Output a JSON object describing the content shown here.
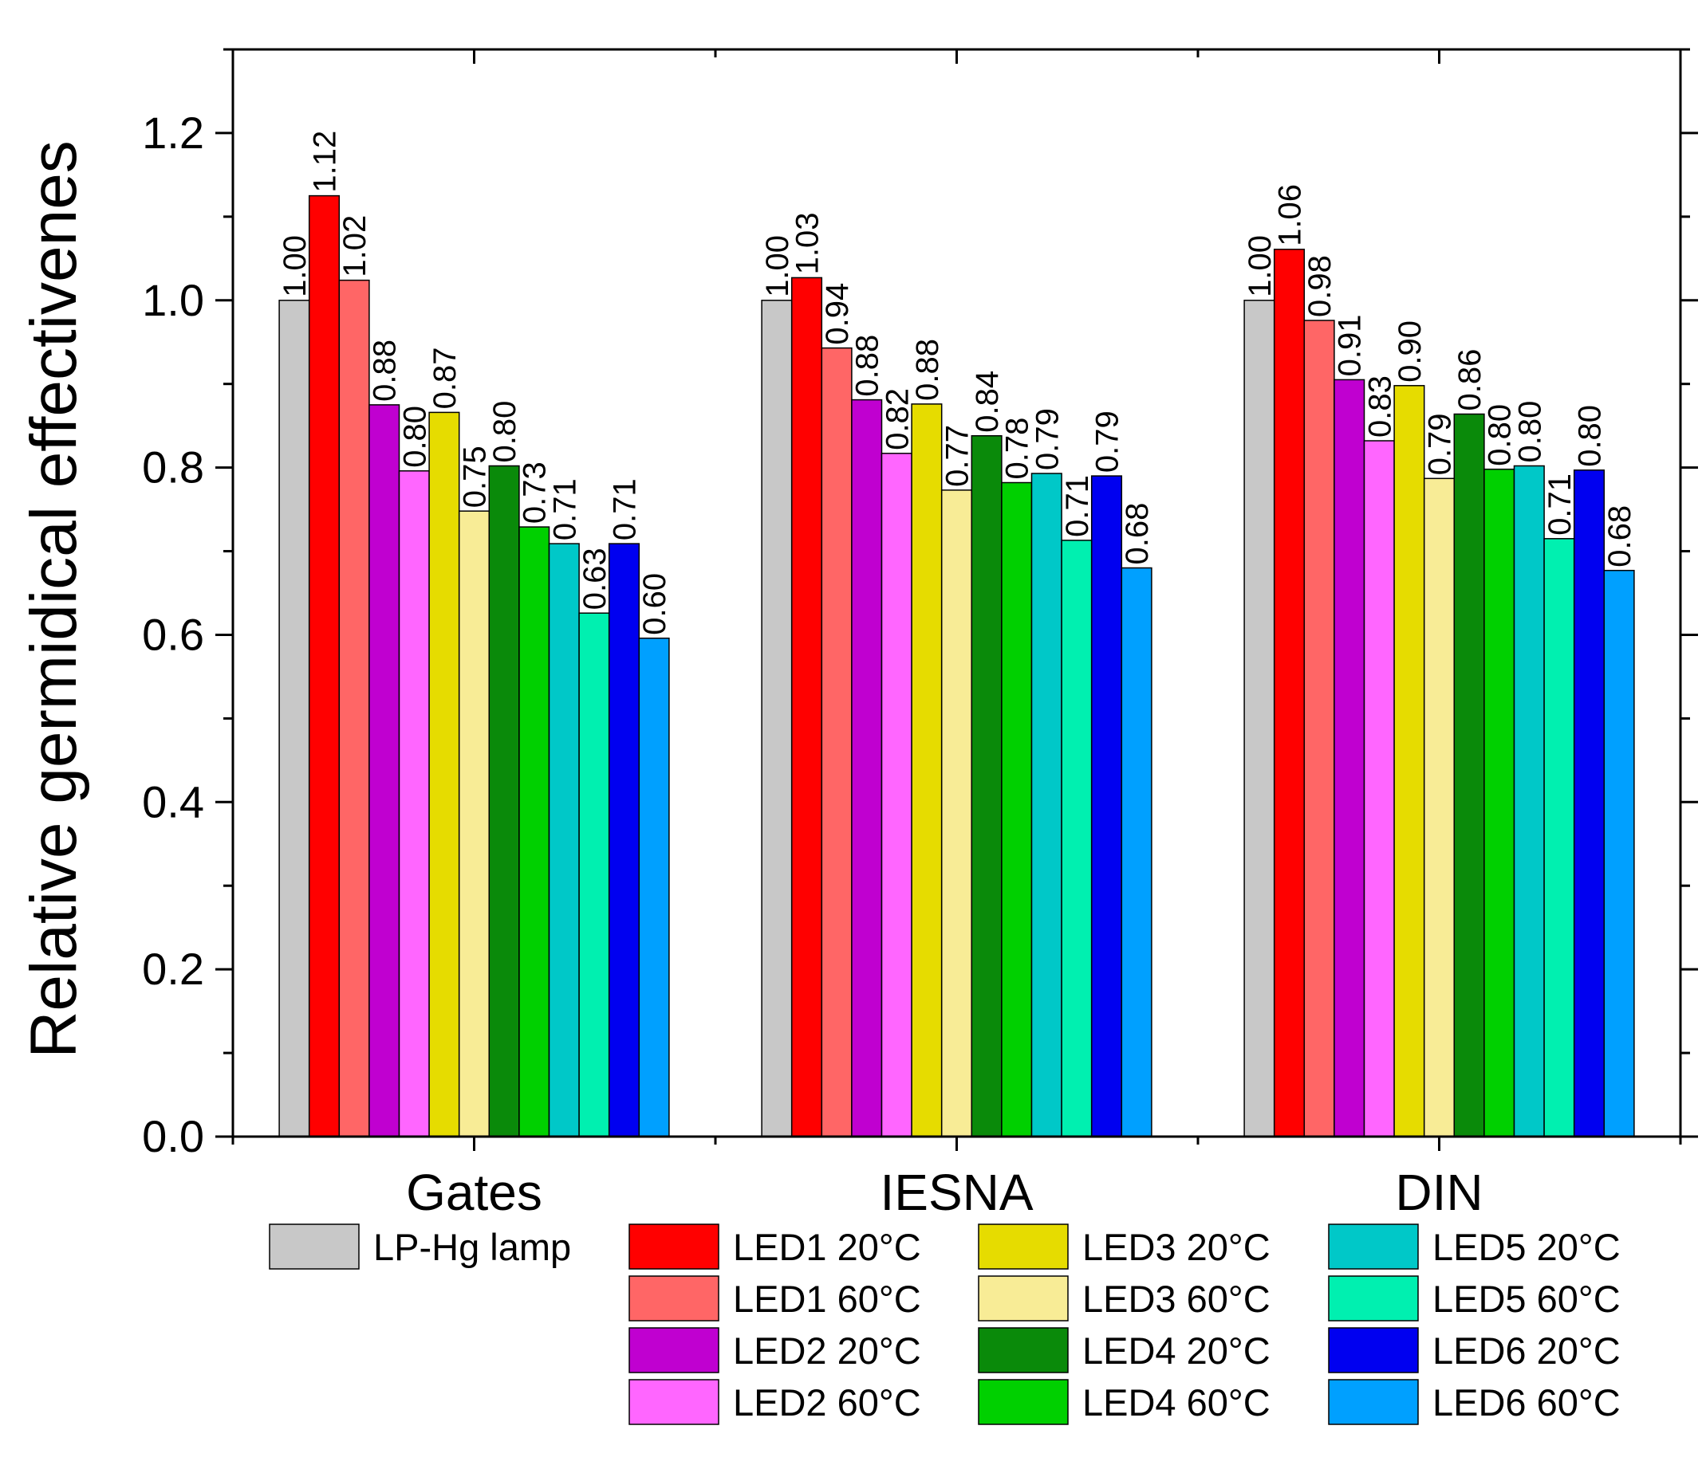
{
  "chart_data": {
    "type": "bar",
    "title": "",
    "xlabel": "",
    "ylabel": "Relative germidical effectivenes",
    "ylim": [
      0,
      1.3
    ],
    "yticks": [
      "0.0",
      "0.2",
      "0.4",
      "0.6",
      "0.8",
      "1.0",
      "1.2"
    ],
    "categories": [
      "Gates",
      "IESNA",
      "DIN"
    ],
    "series": [
      {
        "name": "LP-Hg lamp",
        "color": "#c8c8c8",
        "values": [
          1.0,
          1.0,
          1.0
        ],
        "labels": [
          "1.00",
          "1.00",
          "1.00"
        ]
      },
      {
        "name": "LED1 20°C",
        "color": "#ff0000",
        "values": [
          1.125,
          1.027,
          1.061
        ],
        "labels": [
          "1.12",
          "1.03",
          "1.06"
        ]
      },
      {
        "name": "LED1 60°C",
        "color": "#ff6666",
        "values": [
          1.024,
          0.943,
          0.976
        ],
        "labels": [
          "1.02",
          "0.94",
          "0.98"
        ]
      },
      {
        "name": "LED2 20°C",
        "color": "#c000d0",
        "values": [
          0.875,
          0.881,
          0.905
        ],
        "labels": [
          "0.88",
          "0.88",
          "0.91"
        ]
      },
      {
        "name": "LED2 60°C",
        "color": "#ff66ff",
        "values": [
          0.796,
          0.817,
          0.832
        ],
        "labels": [
          "0.80",
          "0.82",
          "0.83"
        ]
      },
      {
        "name": "LED3 20°C",
        "color": "#e6dc00",
        "values": [
          0.866,
          0.876,
          0.898
        ],
        "labels": [
          "0.87",
          "0.88",
          "0.90"
        ]
      },
      {
        "name": "LED3 60°C",
        "color": "#f8ec96",
        "values": [
          0.748,
          0.773,
          0.787
        ],
        "labels": [
          "0.75",
          "0.77",
          "0.79"
        ]
      },
      {
        "name": "LED4 20°C",
        "color": "#0a8a0a",
        "values": [
          0.802,
          0.838,
          0.864
        ],
        "labels": [
          "0.80",
          "0.84",
          "0.86"
        ]
      },
      {
        "name": "LED4 60°C",
        "color": "#00d000",
        "values": [
          0.729,
          0.782,
          0.798
        ],
        "labels": [
          "0.73",
          "0.78",
          "0.80"
        ]
      },
      {
        "name": "LED5 20°C",
        "color": "#00c8c8",
        "values": [
          0.709,
          0.793,
          0.802
        ],
        "labels": [
          "0.71",
          "0.79",
          "0.80"
        ]
      },
      {
        "name": "LED5 60°C",
        "color": "#00f0b0",
        "values": [
          0.626,
          0.713,
          0.715
        ],
        "labels": [
          "0.63",
          "0.71",
          "0.71"
        ]
      },
      {
        "name": "LED6 20°C",
        "color": "#0000f0",
        "values": [
          0.709,
          0.79,
          0.797
        ],
        "labels": [
          "0.71",
          "0.79",
          "0.80"
        ]
      },
      {
        "name": "LED6 60°C",
        "color": "#00a0ff",
        "values": [
          0.596,
          0.68,
          0.677
        ],
        "labels": [
          "0.60",
          "0.68",
          "0.68"
        ]
      }
    ],
    "legend_placement": "bottom"
  }
}
